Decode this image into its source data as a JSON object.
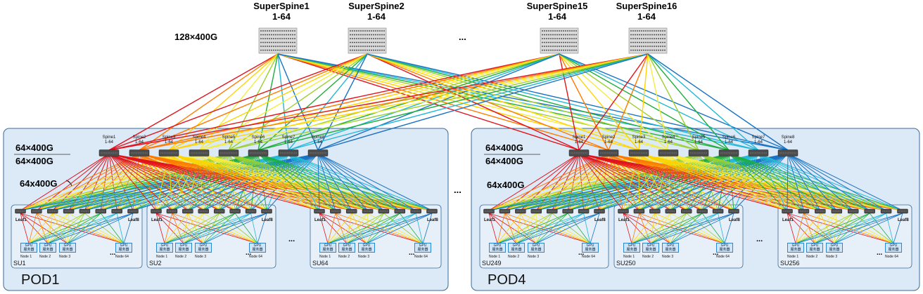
{
  "superspines": [
    {
      "name": "SuperSpine1",
      "range": "1-64"
    },
    {
      "name": "SuperSpine2",
      "range": "1-64"
    },
    {
      "name": "SuperSpine15",
      "range": "1-64"
    },
    {
      "name": "SuperSpine16",
      "range": "1-64"
    }
  ],
  "superspine_ellipsis": "...",
  "superspine_ports": "128×400G",
  "pods": [
    {
      "name": "POD1",
      "uplink": "64×400G",
      "uplink2": "64×400G",
      "downlink": "64x400G",
      "sus": [
        "SU1",
        "SU2",
        "SU64"
      ]
    },
    {
      "name": "POD4",
      "uplink": "64×400G",
      "uplink2": "64×400G",
      "downlink": "64x400G",
      "sus": [
        "SU249",
        "SU250",
        "SU256"
      ]
    }
  ],
  "spines": [
    {
      "name": "Spine1",
      "range": "1-64"
    },
    {
      "name": "Spine2",
      "range": "1-64"
    },
    {
      "name": "Spine3",
      "range": "1-64"
    },
    {
      "name": "Spine4",
      "range": "1-64"
    },
    {
      "name": "Spine5",
      "range": "1-64"
    },
    {
      "name": "Spine6",
      "range": "1-64"
    },
    {
      "name": "Spine7",
      "range": "1-64"
    },
    {
      "name": "Spine8",
      "range": "1-64"
    }
  ],
  "leaf_first": "Leaf1",
  "leaf_last": "Leaf8",
  "gpu_label": "GPU",
  "gpu_sublabel": "服务器",
  "nodes": [
    "Node 1",
    "Node 2",
    "Node 3",
    "Node 64"
  ],
  "ellipsis": "...",
  "pod_ellipsis": "...",
  "colors": {
    "link": [
      "#e0141e",
      "#ff7a00",
      "#ffd400",
      "#f5ec40",
      "#9bd02e",
      "#1fae3c",
      "#24b8d8",
      "#1a73c2"
    ],
    "pod_fill": "#dce9f6",
    "pod_border": "#3c6a99",
    "su_border": "#3c6a99"
  }
}
